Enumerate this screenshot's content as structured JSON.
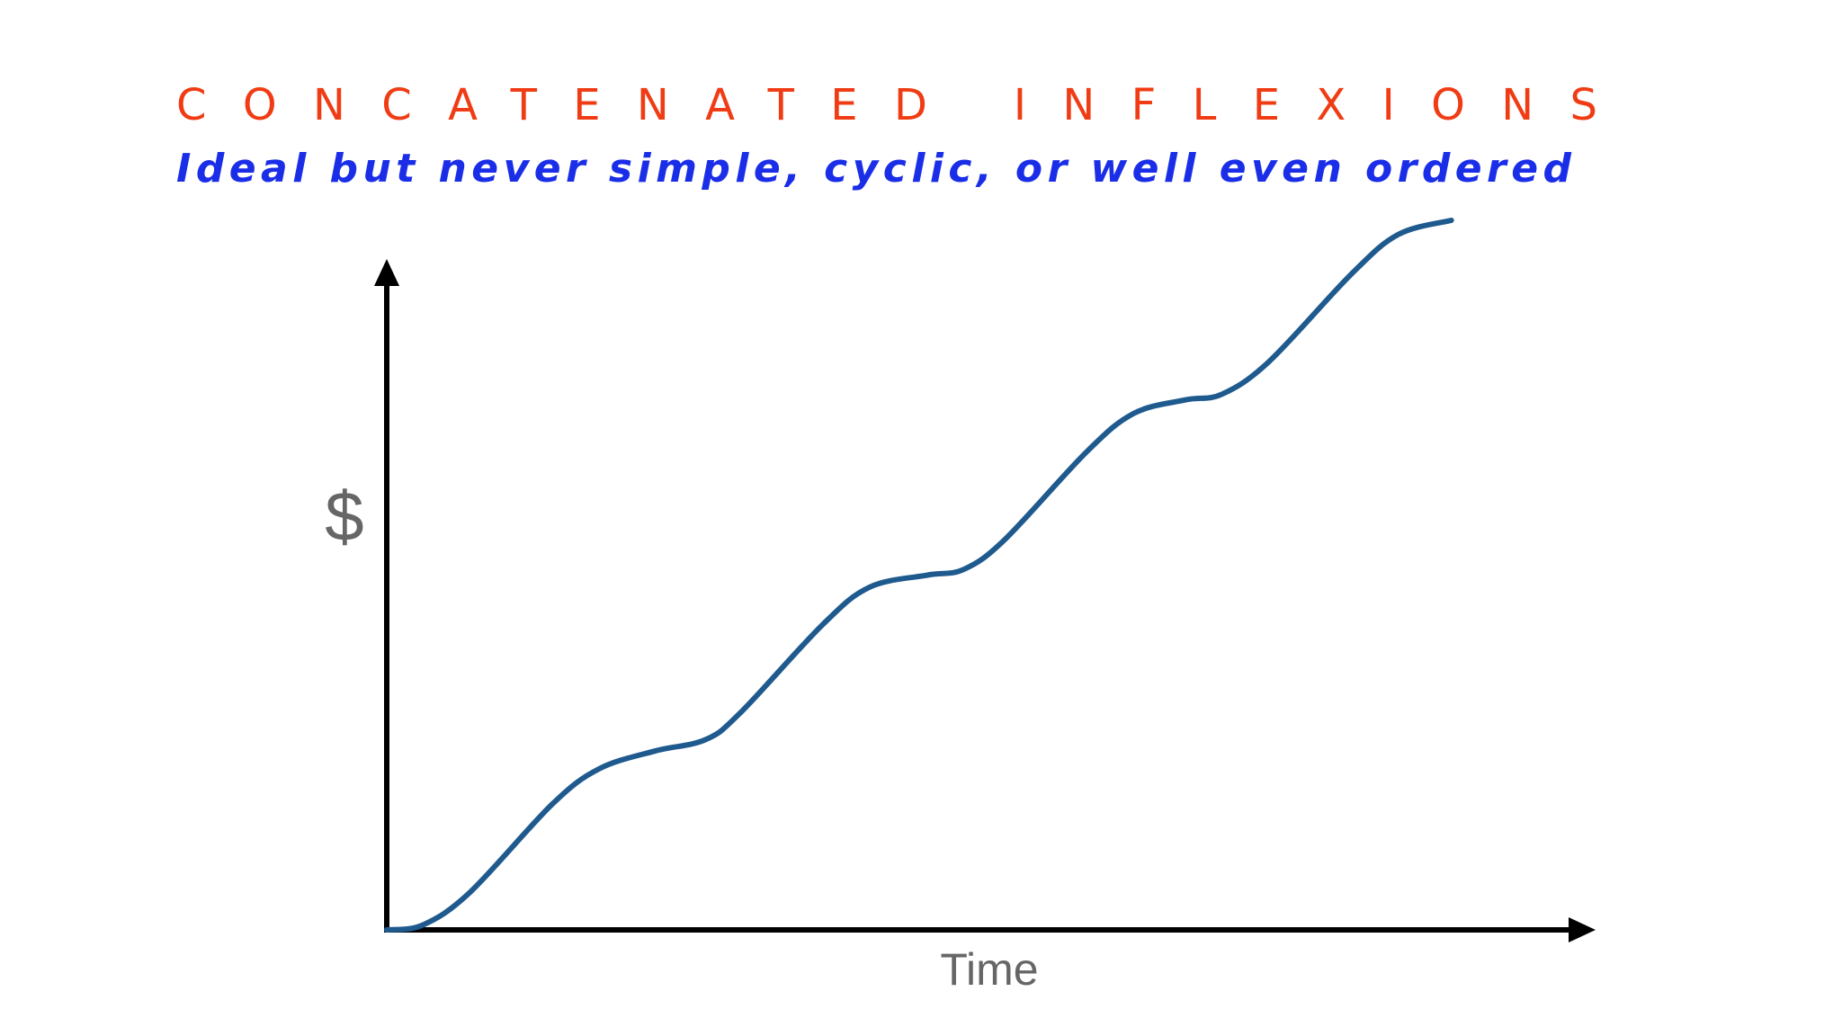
{
  "chart_data": {
    "type": "line",
    "title": "CONCATENATED INFLEXIONS",
    "subtitle": "Ideal but never simple, cyclic, or well even ordered",
    "y_label": "$",
    "x_label": "Time",
    "color": "#1f5a8e",
    "xlim": [
      0,
      100
    ],
    "ylim": [
      0,
      100
    ],
    "x": [
      0,
      3.0,
      6.9,
      13.7,
      17.6,
      22.2,
      26.4,
      29.3,
      36.1,
      40.0,
      44.8,
      47.8,
      51.2,
      58.0,
      61.9,
      66.2,
      69.2,
      73.1,
      79.9,
      83.8,
      88.2
    ],
    "values": [
      0,
      0.7,
      5.3,
      17.7,
      22.7,
      25.2,
      26.8,
      30.6,
      43.0,
      48.3,
      50.0,
      50.8,
      55.0,
      67.4,
      72.8,
      74.7,
      75.5,
      80.1,
      92.4,
      98.0,
      100
    ]
  }
}
